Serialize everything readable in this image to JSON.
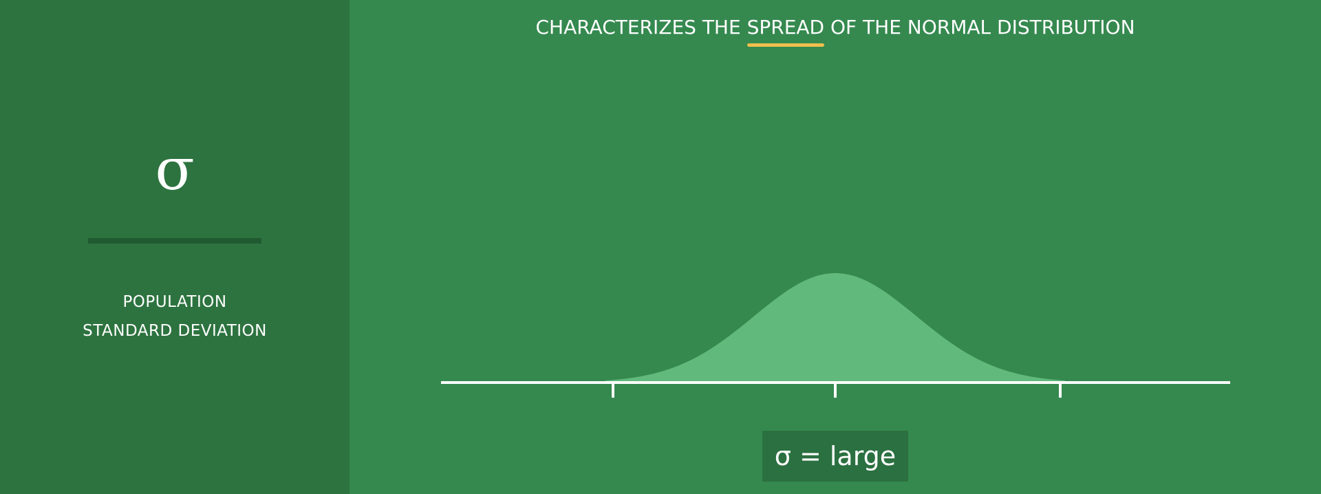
{
  "left_panel": {
    "symbol": "σ",
    "term_line1": "POPULATION",
    "term_line2": "STANDARD DEVIATION"
  },
  "headline": {
    "before": "CHARACTERIZES THE ",
    "emphasis": "SPREAD",
    "after": " OF THE NORMAL DISTRIBUTION"
  },
  "distribution": {
    "shape": "normal",
    "tick_marks": 3
  },
  "value_label": "σ = large",
  "colors": {
    "background": "#35894f",
    "left_panel": "#2d733f",
    "curve_fill": "#62b97c",
    "underline": "#f0bf4c",
    "axis": "#ffffff"
  }
}
